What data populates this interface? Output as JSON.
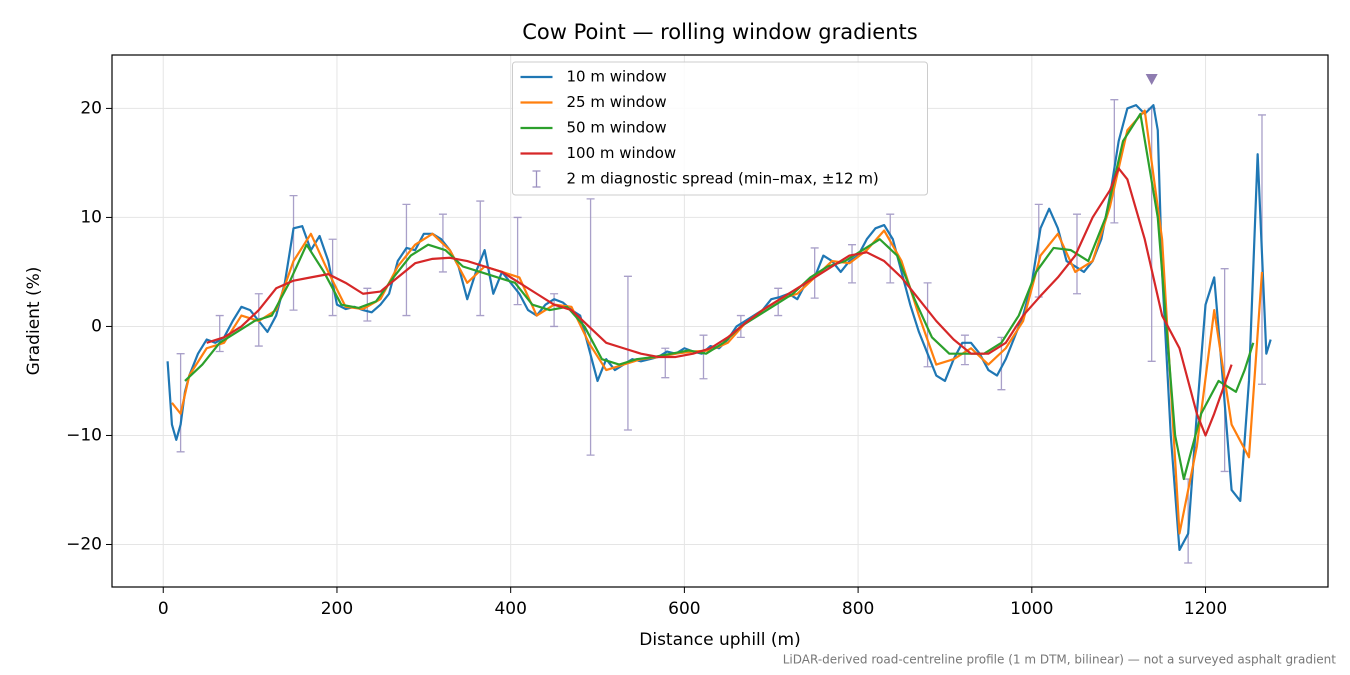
{
  "chart_data": {
    "type": "line",
    "title": "Cow Point — rolling window gradients",
    "x_label": "Distance uphill (m)",
    "y_label": "Gradient (%)",
    "footnote": "LiDAR-derived road-centreline profile (1 m DTM, bilinear) — not a surveyed asphalt gradient",
    "xlim": [
      -59,
      1341
    ],
    "ylim": [
      -23.9,
      24.9
    ],
    "xticks": [
      0,
      200,
      400,
      600,
      800,
      1000,
      1200
    ],
    "yticks": [
      {
        "value": -20,
        "label": "−20"
      },
      {
        "value": -10,
        "label": "−10"
      },
      0,
      10,
      20
    ],
    "grid": true,
    "legend": "upper center",
    "series": [
      {
        "name": "10 m window",
        "color": "#1f77b4",
        "x": [
          5,
          10,
          15,
          20,
          25,
          30,
          40,
          50,
          60,
          70,
          80,
          90,
          100,
          110,
          120,
          130,
          140,
          150,
          160,
          170,
          180,
          190,
          200,
          210,
          220,
          230,
          240,
          250,
          260,
          270,
          280,
          290,
          300,
          310,
          320,
          330,
          340,
          350,
          360,
          370,
          380,
          390,
          400,
          410,
          420,
          430,
          440,
          450,
          460,
          470,
          480,
          490,
          500,
          510,
          520,
          530,
          540,
          550,
          560,
          570,
          580,
          590,
          600,
          610,
          620,
          630,
          640,
          650,
          660,
          670,
          680,
          690,
          700,
          710,
          720,
          730,
          740,
          750,
          760,
          770,
          780,
          790,
          800,
          810,
          820,
          830,
          840,
          850,
          860,
          870,
          880,
          890,
          900,
          910,
          920,
          930,
          940,
          950,
          960,
          970,
          980,
          990,
          1000,
          1010,
          1020,
          1030,
          1040,
          1050,
          1060,
          1070,
          1080,
          1090,
          1100,
          1110,
          1120,
          1130,
          1140,
          1145,
          1150,
          1160,
          1170,
          1180,
          1190,
          1200,
          1210,
          1220,
          1230,
          1240,
          1250,
          1260,
          1270,
          1275
        ],
        "values": [
          -3.2,
          -9,
          -10.4,
          -9,
          -6,
          -4.5,
          -2.5,
          -1.2,
          -1.5,
          -1,
          0.5,
          1.8,
          1.5,
          0.5,
          -0.5,
          1,
          4,
          9,
          9.2,
          7,
          8.3,
          6,
          2,
          1.6,
          1.8,
          1.5,
          1.3,
          2,
          3,
          6,
          7.2,
          7,
          8.5,
          8.5,
          8,
          7,
          5.5,
          2.5,
          5,
          7,
          3,
          5,
          4,
          3,
          1.5,
          1,
          2,
          2.5,
          2.2,
          1.5,
          1,
          -2,
          -5,
          -3,
          -4,
          -3.5,
          -3,
          -3.2,
          -3,
          -2.8,
          -2.3,
          -2.5,
          -2,
          -2.3,
          -2.5,
          -1.8,
          -2,
          -1.2,
          0,
          0.5,
          1,
          1.5,
          2.5,
          2.7,
          3,
          2.5,
          4,
          4.5,
          6.5,
          6,
          5,
          6,
          6.5,
          8,
          9,
          9.3,
          8,
          5,
          2,
          -0.5,
          -2.5,
          -4.5,
          -5,
          -3,
          -1.5,
          -1.5,
          -2.5,
          -4,
          -4.5,
          -3,
          -1,
          1,
          4,
          9,
          10.8,
          9,
          6,
          5.5,
          5,
          6,
          8,
          12,
          17,
          20,
          20.3,
          19.5,
          20.3,
          18,
          5,
          -10,
          -20.5,
          -19,
          -8,
          2,
          4.5,
          -5,
          -15,
          -16,
          -5,
          15.8,
          -2.5,
          -1.2
        ]
      },
      {
        "name": "25 m window",
        "color": "#ff7f0e",
        "x": [
          10,
          20,
          30,
          50,
          70,
          90,
          110,
          130,
          150,
          170,
          190,
          210,
          230,
          250,
          270,
          290,
          310,
          330,
          350,
          370,
          390,
          410,
          430,
          450,
          470,
          490,
          510,
          530,
          550,
          570,
          590,
          610,
          630,
          650,
          670,
          690,
          710,
          730,
          750,
          770,
          790,
          810,
          830,
          850,
          870,
          890,
          910,
          930,
          950,
          970,
          990,
          1010,
          1030,
          1050,
          1070,
          1090,
          1110,
          1130,
          1150,
          1170,
          1190,
          1210,
          1230,
          1250,
          1265
        ],
        "values": [
          -7,
          -8,
          -4.5,
          -2,
          -1.5,
          1,
          0.5,
          1.5,
          6,
          8.5,
          5,
          1.8,
          1.6,
          2.5,
          5.5,
          7.5,
          8.5,
          7,
          4,
          5.5,
          5,
          4.5,
          1,
          2,
          1.8,
          -1.5,
          -4,
          -3.5,
          -3,
          -2.8,
          -2.5,
          -2.3,
          -2.2,
          -1.5,
          0.3,
          1.5,
          2.5,
          3,
          4.5,
          6,
          5.8,
          7,
          8.8,
          6,
          1,
          -3.5,
          -3,
          -2,
          -3.5,
          -2,
          0.5,
          6.5,
          8.5,
          5,
          6,
          11,
          18,
          19.8,
          8,
          -19,
          -11,
          1.5,
          -9,
          -12,
          5
        ]
      },
      {
        "name": "50 m window",
        "color": "#2ca02c",
        "x": [
          25,
          45,
          65,
          85,
          105,
          125,
          145,
          165,
          185,
          205,
          225,
          245,
          265,
          285,
          305,
          325,
          345,
          365,
          385,
          405,
          425,
          445,
          465,
          485,
          505,
          525,
          545,
          565,
          585,
          605,
          625,
          645,
          665,
          685,
          705,
          725,
          745,
          765,
          785,
          805,
          825,
          845,
          865,
          885,
          905,
          925,
          945,
          965,
          985,
          1005,
          1025,
          1045,
          1065,
          1085,
          1105,
          1125,
          1145,
          1165,
          1175,
          1195,
          1215,
          1235,
          1245,
          1255
        ],
        "values": [
          -5,
          -3.5,
          -1.5,
          -0.5,
          0.5,
          1,
          4,
          7.5,
          5,
          2,
          1.7,
          2.3,
          4.5,
          6.5,
          7.5,
          7,
          5.5,
          5,
          4.5,
          4,
          2,
          1.5,
          1.8,
          0,
          -3,
          -3.5,
          -3,
          -2.8,
          -2.5,
          -2.2,
          -2.5,
          -1.5,
          0,
          1,
          2,
          3,
          4.5,
          5.5,
          6,
          7,
          8,
          6.5,
          2.5,
          -1,
          -2.5,
          -2.5,
          -2.5,
          -1.5,
          1,
          5,
          7.2,
          7,
          6,
          10,
          17,
          19.5,
          10,
          -10,
          -14,
          -8,
          -5,
          -6,
          -4,
          -1.5
        ]
      },
      {
        "name": "100 m window",
        "color": "#d62728",
        "x": [
          50,
          70,
          90,
          110,
          130,
          150,
          170,
          190,
          210,
          230,
          250,
          270,
          290,
          310,
          330,
          350,
          370,
          390,
          410,
          430,
          450,
          470,
          490,
          510,
          530,
          550,
          570,
          590,
          610,
          630,
          650,
          670,
          690,
          710,
          730,
          750,
          770,
          790,
          810,
          830,
          850,
          870,
          890,
          910,
          930,
          950,
          970,
          990,
          1010,
          1030,
          1050,
          1070,
          1090,
          1100,
          1110,
          1130,
          1150,
          1170,
          1190,
          1200,
          1210,
          1230
        ],
        "values": [
          -1.5,
          -1,
          0,
          1.5,
          3.5,
          4.2,
          4.5,
          4.8,
          4,
          3,
          3.2,
          4.5,
          5.8,
          6.2,
          6.3,
          6,
          5.5,
          5,
          4,
          3,
          2,
          1.5,
          0,
          -1.5,
          -2,
          -2.5,
          -2.8,
          -2.8,
          -2.5,
          -2,
          -1,
          0.3,
          1.5,
          2.5,
          3.5,
          4.5,
          5.5,
          6.5,
          6.8,
          6,
          4.5,
          2.5,
          0.5,
          -1.2,
          -2.5,
          -2.5,
          -1.5,
          1,
          2.8,
          4.5,
          6.5,
          10,
          12.5,
          14.5,
          13.5,
          8,
          1,
          -2,
          -8,
          -10,
          -8,
          -3.5
        ]
      }
    ],
    "errorbars": {
      "name": "2 m diagnostic spread (min–max, ±12 m)",
      "color": "#9a8fbf",
      "x": [
        20,
        65,
        110,
        150,
        195,
        235,
        280,
        322,
        365,
        408,
        450,
        492,
        535,
        578,
        622,
        665,
        708,
        750,
        793,
        837,
        880,
        923,
        965,
        1008,
        1052,
        1095,
        1138,
        1180,
        1222,
        1265
      ],
      "low": [
        -11.5,
        -2.3,
        -1.8,
        1.5,
        1,
        0.5,
        1,
        5,
        1,
        2,
        0,
        -11.8,
        -9.5,
        -4.7,
        -4.8,
        -1,
        1,
        2.6,
        4,
        4,
        -3.7,
        -3.5,
        -5.8,
        2.7,
        3,
        9.5,
        -3.2,
        -21.7,
        -13.3,
        -5.3
      ],
      "high": [
        -2.5,
        1,
        3,
        12,
        8,
        3.5,
        11.2,
        10.3,
        11.5,
        10,
        3,
        11.7,
        4.6,
        -2,
        -0.8,
        1,
        3.5,
        7.2,
        7.5,
        10.3,
        4,
        -0.8,
        -1,
        11.2,
        10.3,
        20.8,
        20,
        -14,
        5.3,
        19.4
      ]
    },
    "clip_marker": {
      "x": 1138,
      "y": 22.7,
      "color": "#8e7cb0"
    }
  }
}
